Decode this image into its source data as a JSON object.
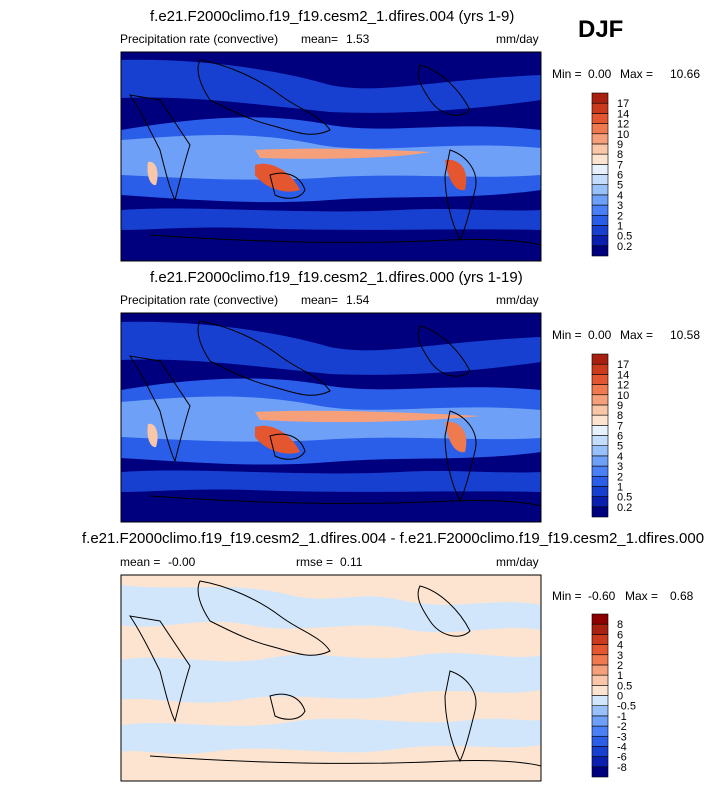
{
  "season": "DJF",
  "colors": {
    "precip": [
      "#00007f",
      "#0a1fb0",
      "#1840d0",
      "#2a5ee8",
      "#4a80f5",
      "#6ea0f8",
      "#98c0fb",
      "#c4dcfd",
      "#e8f2ff",
      "#fde4d0",
      "#f9c6a8",
      "#f5a07a",
      "#f07a50",
      "#e35630",
      "#cc3a1e",
      "#a82010",
      "#8b0000"
    ],
    "diff": [
      "#00007f",
      "#0a1fb0",
      "#1840d0",
      "#2a5ee8",
      "#4a80f5",
      "#6ea0f8",
      "#98c0fb",
      "#d2e6fb",
      "#fde4d0",
      "#f9c6a8",
      "#f5a07a",
      "#f07a50",
      "#e35630",
      "#cc3a1e",
      "#a82010",
      "#8b0000"
    ],
    "land": "#000000"
  },
  "chart_data": [
    {
      "type": "heatmap",
      "title": "f.e21.F2000climo.f19_f19.cesm2_1.dfires.004 (yrs 1-9)",
      "variable": "Precipitation rate (convective)",
      "mean_label": "mean=",
      "mean": "1.53",
      "units": "mm/day",
      "min_label": "Min =",
      "min": "0.00",
      "max_label": "Max =",
      "max": "10.66",
      "colorbar_levels": [
        "0.2",
        "0.5",
        "1",
        "2",
        "3",
        "4",
        "5",
        "6",
        "7",
        "8",
        "9",
        "10",
        "12",
        "14",
        "17"
      ]
    },
    {
      "type": "heatmap",
      "title": "f.e21.F2000climo.f19_f19.cesm2_1.dfires.000 (yrs 1-19)",
      "variable": "Precipitation rate (convective)",
      "mean_label": "mean=",
      "mean": "1.54",
      "units": "mm/day",
      "min_label": "Min =",
      "min": "0.00",
      "max_label": "Max =",
      "max": "10.58",
      "colorbar_levels": [
        "0.2",
        "0.5",
        "1",
        "2",
        "3",
        "4",
        "5",
        "6",
        "7",
        "8",
        "9",
        "10",
        "12",
        "14",
        "17"
      ]
    },
    {
      "type": "heatmap",
      "title": "f.e21.F2000climo.f19_f19.cesm2_1.dfires.004 - f.e21.F2000climo.f19_f19.cesm2_1.dfires.000",
      "mean_label": "mean =",
      "mean": "-0.00",
      "rmse_label": "rmse =",
      "rmse": "0.11",
      "units": "mm/day",
      "min_label": "Min =",
      "min": "-0.60",
      "max_label": "Max =",
      "max": "0.68",
      "colorbar_levels": [
        "-8",
        "-6",
        "-4",
        "-3",
        "-2",
        "-1",
        "-0.5",
        "0",
        "0.5",
        "1",
        "2",
        "3",
        "4",
        "6",
        "8"
      ]
    }
  ]
}
